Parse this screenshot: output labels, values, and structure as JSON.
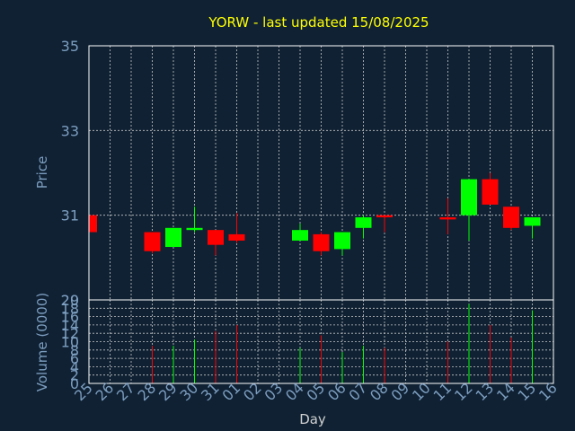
{
  "chart_data": {
    "type": "candlestick",
    "title": "YORW - last updated 15/08/2025",
    "xlabel": "Day",
    "ylabel": "Price",
    "volume_label": "Volume (0000)",
    "grid": true,
    "days": [
      "25",
      "26",
      "27",
      "28",
      "29",
      "30",
      "31",
      "01",
      "02",
      "03",
      "04",
      "05",
      "06",
      "07",
      "08",
      "09",
      "10",
      "11",
      "12",
      "13",
      "14",
      "15",
      "16"
    ],
    "price_ylim": [
      29,
      35
    ],
    "price_ticks": [
      29,
      31,
      33,
      35
    ],
    "volume_ylim": [
      0,
      20
    ],
    "volume_ticks": [
      0,
      2,
      4,
      6,
      8,
      10,
      12,
      14,
      16,
      18,
      20
    ],
    "candles": [
      {
        "day": "25",
        "open": 31.0,
        "close": 30.6,
        "high": 31.0,
        "low": 30.6,
        "volume": 0
      },
      {
        "day": "28",
        "open": 30.6,
        "close": 30.15,
        "high": 30.6,
        "low": 30.1,
        "volume": 9
      },
      {
        "day": "29",
        "open": 30.25,
        "close": 30.7,
        "high": 30.7,
        "low": 30.25,
        "volume": 9
      },
      {
        "day": "30",
        "open": 30.65,
        "close": 30.7,
        "high": 31.2,
        "low": 30.6,
        "volume": 10.5
      },
      {
        "day": "31",
        "open": 30.65,
        "close": 30.3,
        "high": 30.65,
        "low": 30.05,
        "volume": 12.5
      },
      {
        "day": "01",
        "open": 30.55,
        "close": 30.4,
        "high": 31.05,
        "low": 30.35,
        "volume": 14
      },
      {
        "day": "04",
        "open": 30.4,
        "close": 30.65,
        "high": 30.8,
        "low": 30.4,
        "volume": 8.5
      },
      {
        "day": "05",
        "open": 30.55,
        "close": 30.15,
        "high": 30.6,
        "low": 30.05,
        "volume": 11.5
      },
      {
        "day": "06",
        "open": 30.2,
        "close": 30.6,
        "high": 30.6,
        "low": 30.05,
        "volume": 7.5
      },
      {
        "day": "07",
        "open": 30.7,
        "close": 30.95,
        "high": 31.0,
        "low": 30.45,
        "volume": 9
      },
      {
        "day": "08",
        "open": 31.0,
        "close": 30.95,
        "high": 31.0,
        "low": 30.6,
        "volume": 8.5
      },
      {
        "day": "11",
        "open": 30.95,
        "close": 30.9,
        "high": 31.4,
        "low": 30.55,
        "volume": 10
      },
      {
        "day": "12",
        "open": 31.0,
        "close": 31.85,
        "high": 31.85,
        "low": 30.4,
        "volume": 19
      },
      {
        "day": "13",
        "open": 31.85,
        "close": 31.25,
        "high": 32.0,
        "low": 31.25,
        "volume": 14
      },
      {
        "day": "14",
        "open": 31.2,
        "close": 30.7,
        "high": 31.2,
        "low": 30.65,
        "volume": 11
      },
      {
        "day": "15",
        "open": 30.75,
        "close": 30.95,
        "high": 30.95,
        "low": 30.45,
        "volume": 17.5
      }
    ],
    "colors": {
      "background": "#0f2133",
      "title": "#ffff00",
      "axis_text": "#7d9ec0",
      "up": "#00ff00",
      "down": "#ff0000",
      "grid": "#c8c8c8"
    }
  }
}
